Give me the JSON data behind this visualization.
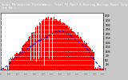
{
  "title": "Solar PV/Inverter Performance  Total PV Panel & Running Average Power Output",
  "subtitle": "Live kWh = --",
  "plot_bg": "#ffffff",
  "bar_color": "#ff0000",
  "avg_line_color": "#0000cc",
  "grid_color": "#ffffff",
  "yticks": [
    0,
    250,
    500,
    750,
    1000,
    1250,
    1500,
    1750,
    2000,
    2250,
    2500,
    2750,
    3000
  ],
  "ylim": [
    0,
    3200
  ],
  "header_bg": "#555555",
  "header_text_color": "#ffffff",
  "xaxis_bg": "#d0d0d0",
  "right_margin_bg": "#e8e8e8",
  "n_bars": 144,
  "seed": 12
}
